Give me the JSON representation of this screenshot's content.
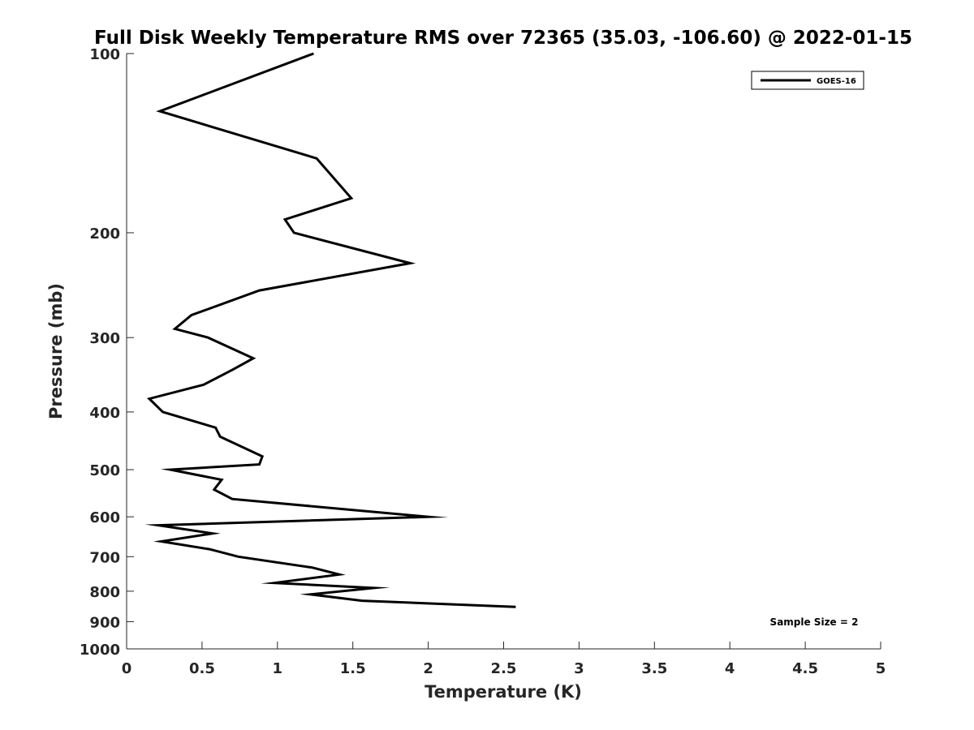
{
  "chart_data": {
    "type": "line",
    "title": "Full Disk Weekly Temperature RMS over 72365 (35.03, -106.60) @ 2022-01-15",
    "xlabel": "Temperature (K)",
    "ylabel": "Pressure (mb)",
    "xlim": [
      0,
      5
    ],
    "ylim": [
      100,
      1000
    ],
    "y_scale": "log",
    "y_reversed": true,
    "x_ticks": [
      "0",
      "0.5",
      "1",
      "1.5",
      "2",
      "2.5",
      "3",
      "3.5",
      "4",
      "4.5",
      "5"
    ],
    "y_ticks": [
      "100",
      "200",
      "300",
      "400",
      "500",
      "600",
      "700",
      "800",
      "900",
      "1000"
    ],
    "grid": false,
    "legend": {
      "position": "top-right",
      "entries": [
        "GOES-16"
      ]
    },
    "annotation": "Sample Size = 2",
    "series": [
      {
        "name": "GOES-16",
        "color": "#000000",
        "points": [
          [
            1.24,
            100
          ],
          [
            0.22,
            125
          ],
          [
            1.26,
            150
          ],
          [
            1.49,
            175
          ],
          [
            1.05,
            190
          ],
          [
            1.11,
            200
          ],
          [
            1.88,
            225
          ],
          [
            0.88,
            250
          ],
          [
            0.43,
            275
          ],
          [
            0.32,
            290
          ],
          [
            0.54,
            300
          ],
          [
            0.84,
            325
          ],
          [
            0.7,
            340
          ],
          [
            0.51,
            360
          ],
          [
            0.15,
            380
          ],
          [
            0.24,
            400
          ],
          [
            0.59,
            425
          ],
          [
            0.62,
            440
          ],
          [
            0.9,
            475
          ],
          [
            0.88,
            490
          ],
          [
            0.29,
            500
          ],
          [
            0.63,
            520
          ],
          [
            0.58,
            540
          ],
          [
            0.7,
            560
          ],
          [
            2.0,
            600
          ],
          [
            0.21,
            620
          ],
          [
            0.57,
            640
          ],
          [
            0.23,
            660
          ],
          [
            0.55,
            680
          ],
          [
            0.74,
            700
          ],
          [
            1.23,
            730
          ],
          [
            1.41,
            750
          ],
          [
            0.98,
            775
          ],
          [
            1.64,
            790
          ],
          [
            1.22,
            810
          ],
          [
            1.56,
            830
          ],
          [
            2.58,
            850
          ]
        ]
      }
    ]
  }
}
